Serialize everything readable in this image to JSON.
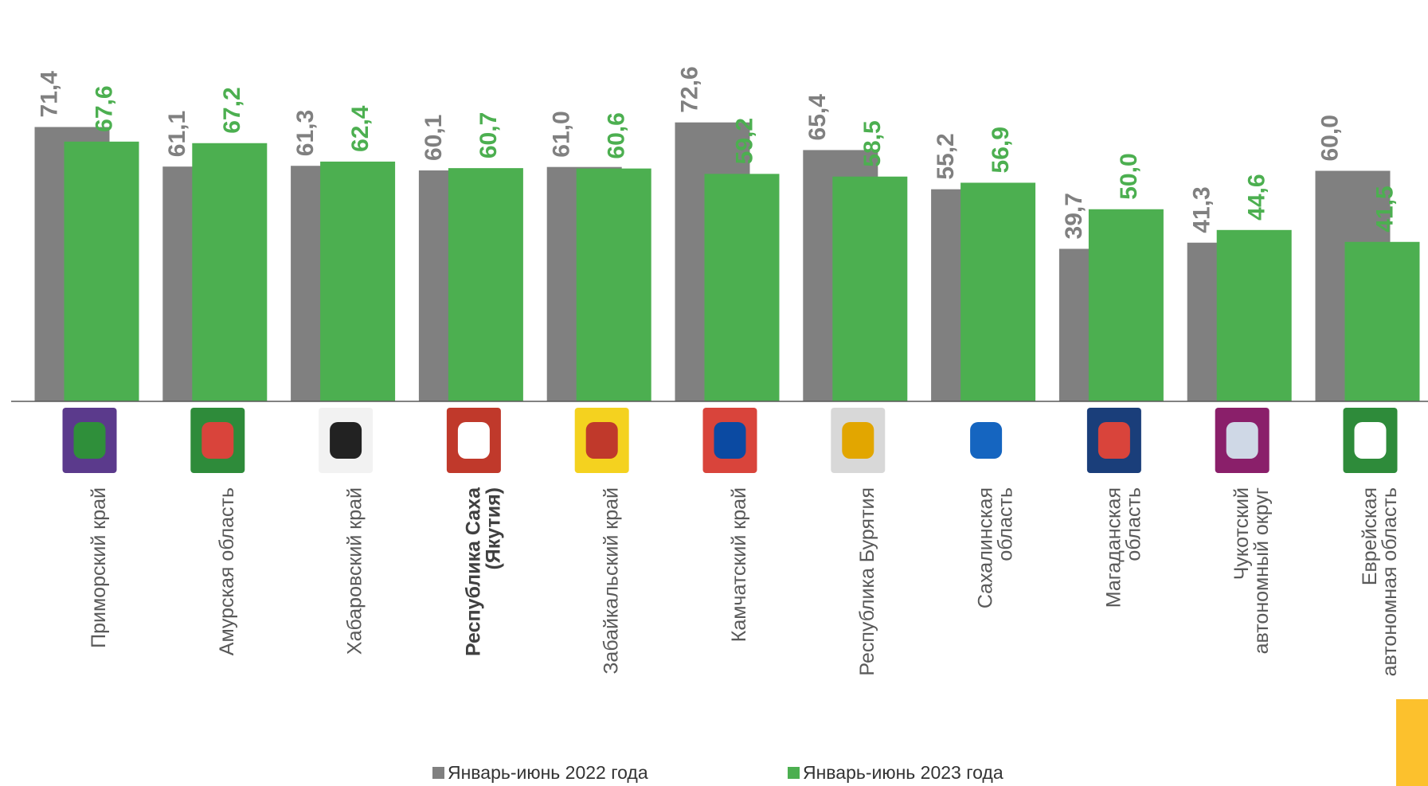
{
  "chart_data": {
    "type": "bar",
    "categories": [
      "Приморский край",
      "Амурская область",
      "Хабаровский край",
      "Республика Саха\n(Якутия)",
      "Забайкальский край",
      "Камчатский край",
      "Республика Бурятия",
      "Сахалинская\nобласть",
      "Магаданская\nобласть",
      "Чукотский\nавтономный округ",
      "Еврейская\nавтономная область"
    ],
    "series": [
      {
        "name": "Январь-июнь 2022 года",
        "color": "#808080",
        "values": [
          71.4,
          61.1,
          61.3,
          60.1,
          61.0,
          72.6,
          65.4,
          55.2,
          39.7,
          41.3,
          60.0
        ],
        "value_labels": [
          "71,4",
          "61,1",
          "61,3",
          "60,1",
          "61,0",
          "72,6",
          "65,4",
          "55,2",
          "39,7",
          "41,3",
          "60,0"
        ]
      },
      {
        "name": "Январь-июнь 2023 года",
        "color": "#4caf50",
        "values": [
          67.6,
          67.2,
          62.4,
          60.7,
          60.6,
          59.2,
          58.5,
          56.9,
          50.0,
          44.6,
          41.5
        ],
        "value_labels": [
          "67,6",
          "67,2",
          "62,4",
          "60,7",
          "60,6",
          "59,2",
          "58,5",
          "56,9",
          "50,0",
          "44,6",
          "41,5"
        ]
      }
    ],
    "ylim": [
      0,
      80
    ],
    "legend": "bottom"
  }
}
